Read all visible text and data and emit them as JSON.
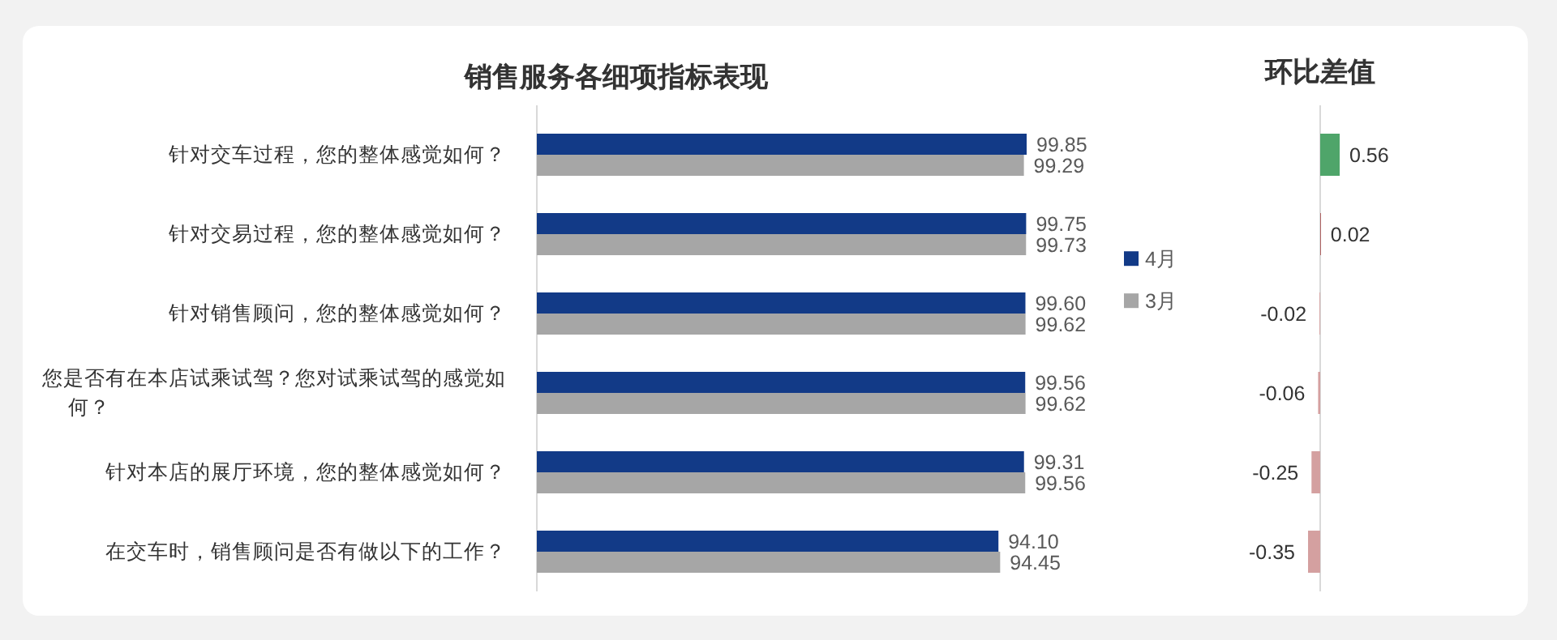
{
  "chart_data": [
    {
      "type": "bar",
      "orientation": "horizontal",
      "title": "销售服务各细项指标表现",
      "categories": [
        "针对交车过程，您的整体感觉如何？",
        "针对交易过程，您的整体感觉如何？",
        "针对销售顾问，您的整体感觉如何？",
        "您是否有在本店试乘试驾？您对试乘试驾的感觉如何？",
        "针对本店的展厅环境，您的整体感觉如何？",
        "在交车时，销售顾问是否有做以下的工作？"
      ],
      "series": [
        {
          "name": "4月",
          "color": "#123a87",
          "values": [
            99.85,
            99.75,
            99.6,
            99.56,
            99.31,
            94.1
          ],
          "value_labels": [
            "99.85",
            "99.75",
            "99.60",
            "99.56",
            "99.31",
            "94.10"
          ]
        },
        {
          "name": "3月",
          "color": "#a6a6a6",
          "values": [
            99.29,
            99.73,
            99.62,
            99.62,
            99.56,
            94.45
          ],
          "value_labels": [
            "99.29",
            "99.73",
            "99.62",
            "99.62",
            "99.56",
            "94.45"
          ]
        }
      ],
      "tick_labels": "y",
      "legend": "right"
    },
    {
      "type": "bar",
      "orientation": "horizontal",
      "title": "环比差值",
      "categories": [
        null,
        null,
        null,
        null,
        null,
        null
      ],
      "values": [
        0.56,
        0.02,
        -0.02,
        -0.06,
        -0.25,
        -0.35
      ],
      "colors": [
        "#4fa56a",
        "#a85050",
        "#d4a0a0",
        "#d4a0a0",
        "#d4a0a0",
        "#d4a0a0"
      ],
      "tick_labels": false,
      "value_labels": [
        "0.56",
        "0.02",
        "-0.02",
        "-0.06",
        "-0.25",
        "-0.35"
      ]
    }
  ]
}
